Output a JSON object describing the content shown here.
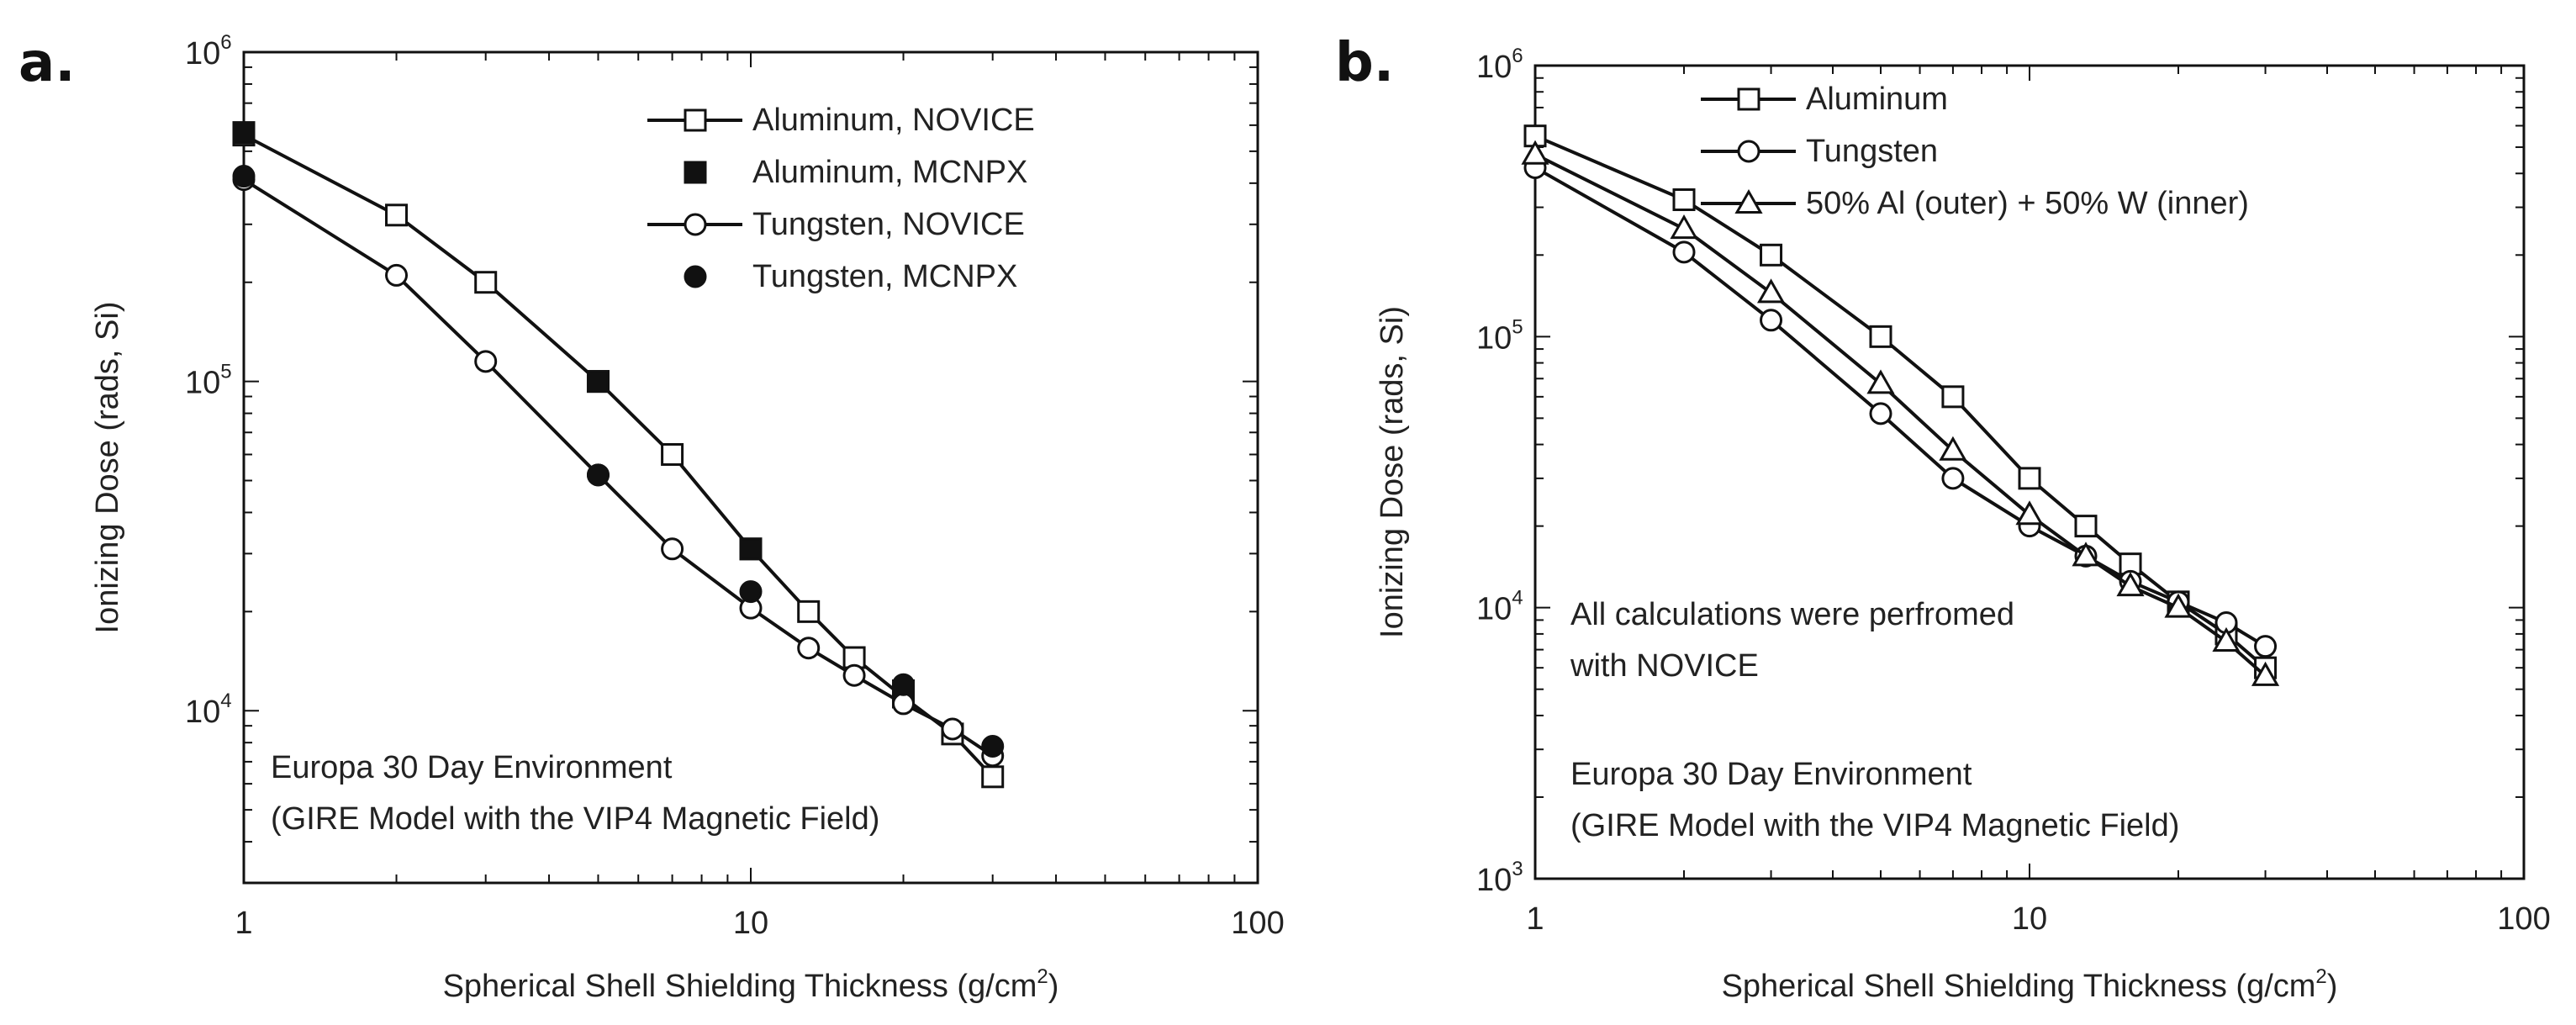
{
  "chart_data": [
    {
      "panel": "a.",
      "type": "line",
      "xscale": "log",
      "yscale": "log",
      "xlim": [
        1,
        100
      ],
      "ylim": [
        3000,
        1000000
      ],
      "xticks": [
        {
          "v": 1,
          "label": "1"
        },
        {
          "v": 10,
          "label": "10"
        },
        {
          "v": 100,
          "label": "100"
        }
      ],
      "yticks": [
        {
          "v": 10000,
          "base": "10",
          "exp": "4"
        },
        {
          "v": 100000,
          "base": "10",
          "exp": "5"
        },
        {
          "v": 1000000,
          "base": "10",
          "exp": "6"
        }
      ],
      "xlabel": "Spherical Shell Shielding Thickness (g/cm",
      "xlabel_sup": "2",
      "xlabel_end": ")",
      "ylabel": "Ionizing Dose (rads, Si)",
      "legend_position": "top-right",
      "annotations": [
        "Europa 30 Day Environment",
        "(GIRE Model with the VIP4 Magnetic Field)"
      ],
      "series": [
        {
          "name": "Aluminum, NOVICE",
          "marker": "square-open",
          "line": true,
          "x": [
            1,
            2,
            3,
            5,
            7,
            10,
            13,
            16,
            20,
            25,
            30
          ],
          "y": [
            560000,
            320000,
            200000,
            100000,
            60000,
            31000,
            20000,
            14500,
            11000,
            8500,
            6300
          ]
        },
        {
          "name": "Aluminum, MCNPX",
          "marker": "square-filled",
          "line": false,
          "x": [
            1,
            5,
            10,
            20
          ],
          "y": [
            570000,
            100000,
            31000,
            11500
          ]
        },
        {
          "name": "Tungsten, NOVICE",
          "marker": "circle-open",
          "line": true,
          "x": [
            1,
            2,
            3,
            5,
            7,
            10,
            13,
            16,
            20,
            25,
            30
          ],
          "y": [
            410000,
            210000,
            115000,
            52000,
            31000,
            20500,
            15500,
            12800,
            10500,
            8800,
            7300
          ]
        },
        {
          "name": "Tungsten, MCNPX",
          "marker": "circle-filled",
          "line": false,
          "x": [
            1,
            5,
            10,
            20,
            30
          ],
          "y": [
            420000,
            52000,
            23000,
            12000,
            7800
          ]
        }
      ]
    },
    {
      "panel": "b.",
      "type": "line",
      "xscale": "log",
      "yscale": "log",
      "xlim": [
        1,
        100
      ],
      "ylim": [
        1000,
        1000000
      ],
      "xticks": [
        {
          "v": 1,
          "label": "1"
        },
        {
          "v": 10,
          "label": "10"
        },
        {
          "v": 100,
          "label": "100"
        }
      ],
      "yticks": [
        {
          "v": 1000,
          "base": "10",
          "exp": "3"
        },
        {
          "v": 10000,
          "base": "10",
          "exp": "4"
        },
        {
          "v": 100000,
          "base": "10",
          "exp": "5"
        },
        {
          "v": 1000000,
          "base": "10",
          "exp": "6"
        }
      ],
      "xlabel": "Spherical Shell Shielding Thickness (g/cm",
      "xlabel_sup": "2",
      "xlabel_end": ")",
      "ylabel": "Ionizing Dose (rads, Si)",
      "legend_position": "top-left",
      "annotations": [
        "All calculations were perfromed",
        "with NOVICE",
        "Europa 30 Day Environment",
        "(GIRE Model with the VIP4 Magnetic Field)"
      ],
      "series": [
        {
          "name": "Aluminum",
          "marker": "square-open",
          "line": true,
          "x": [
            1,
            2,
            3,
            5,
            7,
            10,
            13,
            16,
            20,
            25,
            30
          ],
          "y": [
            550000,
            320000,
            200000,
            100000,
            60000,
            30000,
            20000,
            14500,
            10500,
            8000,
            6000
          ]
        },
        {
          "name": "Tungsten",
          "marker": "circle-open",
          "line": true,
          "x": [
            1,
            2,
            3,
            5,
            7,
            10,
            13,
            16,
            20,
            25,
            30
          ],
          "y": [
            420000,
            205000,
            115000,
            52000,
            30000,
            20000,
            15500,
            12500,
            10500,
            8800,
            7200
          ]
        },
        {
          "name": "50% Al (outer) + 50% W (inner)",
          "marker": "triangle-open",
          "line": true,
          "x": [
            1,
            2,
            3,
            5,
            7,
            10,
            13,
            16,
            20,
            25,
            30
          ],
          "y": [
            470000,
            250000,
            145000,
            67000,
            38000,
            22000,
            15500,
            12000,
            10000,
            7500,
            5600
          ]
        }
      ]
    }
  ]
}
